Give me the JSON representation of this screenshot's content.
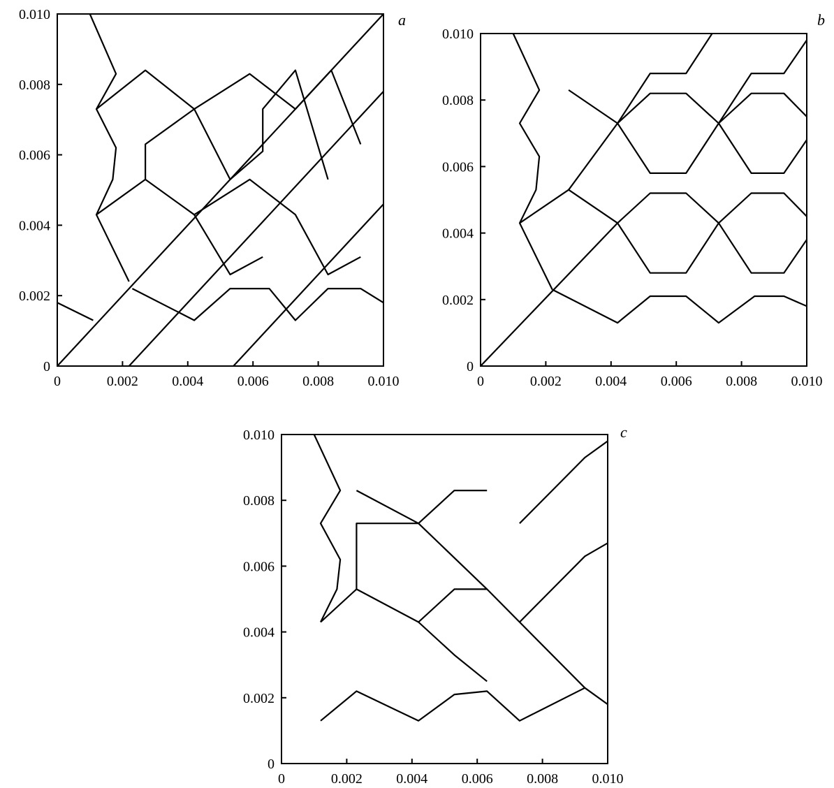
{
  "chart_data": [
    {
      "type": "line",
      "panel_label": "a",
      "xlim": [
        0,
        0.01
      ],
      "ylim": [
        0,
        0.01
      ],
      "x_ticks": [
        "0",
        "0.002",
        "0.004",
        "0.006",
        "0.008",
        "0.010"
      ],
      "y_ticks": [
        "0",
        "0.002",
        "0.004",
        "0.006",
        "0.008",
        "0.010"
      ],
      "grid": false,
      "series": [
        {
          "values": [
            [
              0,
              0
            ],
            [
              0.01,
              0.01
            ]
          ]
        },
        {
          "values": [
            [
              0.0022,
              0
            ],
            [
              0.01,
              0.0078
            ]
          ]
        },
        {
          "values": [
            [
              0.0054,
              0
            ],
            [
              0.01,
              0.0046
            ]
          ]
        },
        {
          "values": [
            [
              0.0023,
              0.0022
            ],
            [
              0.0042,
              0.0013
            ],
            [
              0.0053,
              0.0022
            ],
            [
              0.0065,
              0.0022
            ],
            [
              0.0073,
              0.0013
            ],
            [
              0.0083,
              0.0022
            ],
            [
              0.0093,
              0.0022
            ],
            [
              0.01,
              0.0018
            ]
          ]
        },
        {
          "values": [
            [
              0.0012,
              0.0043
            ],
            [
              0.0027,
              0.0053
            ],
            [
              0.0042,
              0.0043
            ],
            [
              0.0053,
              0.0026
            ],
            [
              0.0063,
              0.0031
            ]
          ]
        },
        {
          "values": [
            [
              0.0042,
              0.0043
            ],
            [
              0.0059,
              0.0053
            ],
            [
              0.0073,
              0.0043
            ],
            [
              0.0083,
              0.0026
            ],
            [
              0.0093,
              0.0031
            ]
          ]
        },
        {
          "values": [
            [
              0.0012,
              0.0073
            ],
            [
              0.0027,
              0.0084
            ],
            [
              0.0042,
              0.0073
            ],
            [
              0.0053,
              0.0053
            ],
            [
              0.0063,
              0.0061
            ],
            [
              0.0063,
              0.0073
            ],
            [
              0.0073,
              0.0084
            ],
            [
              0.0083,
              0.0053
            ]
          ]
        },
        {
          "values": [
            [
              0.0027,
              0.0053
            ],
            [
              0.0027,
              0.0063
            ],
            [
              0.0042,
              0.0073
            ],
            [
              0.0059,
              0.0083
            ],
            [
              0.0073,
              0.0073
            ],
            [
              0.0084,
              0.0084
            ],
            [
              0.0093,
              0.0063
            ]
          ]
        },
        {
          "values": [
            [
              0.0,
              0.0018
            ],
            [
              0.0011,
              0.0013
            ]
          ]
        },
        {
          "values": [
            [
              0.001,
              0.01
            ],
            [
              0.0018,
              0.0083
            ],
            [
              0.0012,
              0.0073
            ],
            [
              0.0018,
              0.0062
            ],
            [
              0.0017,
              0.0053
            ],
            [
              0.0012,
              0.0043
            ],
            [
              0.0022,
              0.0024
            ]
          ]
        }
      ]
    },
    {
      "type": "line",
      "panel_label": "b",
      "xlim": [
        0,
        0.01
      ],
      "ylim": [
        0,
        0.01
      ],
      "x_ticks": [
        "0",
        "0.002",
        "0.004",
        "0.006",
        "0.008",
        "0.010"
      ],
      "y_ticks": [
        "0",
        "0.002",
        "0.004",
        "0.006",
        "0.008",
        "0.010"
      ],
      "grid": false,
      "series": [
        {
          "values": [
            [
              0,
              0
            ],
            [
              0.0042,
              0.0043
            ]
          ]
        },
        {
          "values": [
            [
              0.0022,
              0.0023
            ],
            [
              0.0042,
              0.0013
            ],
            [
              0.0052,
              0.0021
            ],
            [
              0.0063,
              0.0021
            ],
            [
              0.0073,
              0.0013
            ],
            [
              0.0084,
              0.0021
            ],
            [
              0.0093,
              0.0021
            ],
            [
              0.01,
              0.0018
            ]
          ]
        },
        {
          "values": [
            [
              0.0012,
              0.0043
            ],
            [
              0.0027,
              0.0053
            ],
            [
              0.0042,
              0.0043
            ],
            [
              0.0052,
              0.0028
            ],
            [
              0.0063,
              0.0028
            ],
            [
              0.0073,
              0.0043
            ],
            [
              0.0083,
              0.0028
            ],
            [
              0.0093,
              0.0028
            ],
            [
              0.01,
              0.0038
            ]
          ]
        },
        {
          "values": [
            [
              0.0042,
              0.0043
            ],
            [
              0.0052,
              0.0052
            ],
            [
              0.0063,
              0.0052
            ],
            [
              0.0073,
              0.0043
            ],
            [
              0.0083,
              0.0052
            ],
            [
              0.0093,
              0.0052
            ],
            [
              0.01,
              0.0045
            ]
          ]
        },
        {
          "values": [
            [
              0.0027,
              0.0053
            ],
            [
              0.0042,
              0.0073
            ],
            [
              0.0052,
              0.0058
            ],
            [
              0.0063,
              0.0058
            ],
            [
              0.0073,
              0.0073
            ],
            [
              0.0083,
              0.0058
            ],
            [
              0.0093,
              0.0058
            ],
            [
              0.01,
              0.0068
            ]
          ]
        },
        {
          "values": [
            [
              0.0027,
              0.0083
            ],
            [
              0.0042,
              0.0073
            ],
            [
              0.0052,
              0.0082
            ],
            [
              0.0063,
              0.0082
            ],
            [
              0.0073,
              0.0073
            ],
            [
              0.0083,
              0.0082
            ],
            [
              0.0093,
              0.0082
            ],
            [
              0.01,
              0.0075
            ]
          ]
        },
        {
          "values": [
            [
              0.0042,
              0.0073
            ],
            [
              0.0052,
              0.0088
            ],
            [
              0.0063,
              0.0088
            ],
            [
              0.0073,
              0.0103
            ]
          ]
        },
        {
          "values": [
            [
              0.0073,
              0.0073
            ],
            [
              0.0083,
              0.0088
            ],
            [
              0.0093,
              0.0088
            ],
            [
              0.01,
              0.0098
            ]
          ]
        },
        {
          "values": [
            [
              0.001,
              0.01
            ],
            [
              0.0018,
              0.0083
            ],
            [
              0.0012,
              0.0073
            ],
            [
              0.0018,
              0.0063
            ],
            [
              0.0017,
              0.0053
            ],
            [
              0.0012,
              0.0043
            ],
            [
              0.0022,
              0.0023
            ]
          ]
        }
      ]
    },
    {
      "type": "line",
      "panel_label": "c",
      "xlim": [
        0,
        0.01
      ],
      "ylim": [
        0,
        0.01
      ],
      "x_ticks": [
        "0",
        "0.002",
        "0.004",
        "0.006",
        "0.008",
        "0.010"
      ],
      "y_ticks": [
        "0",
        "0.002",
        "0.004",
        "0.006",
        "0.008",
        "0.010"
      ],
      "grid": false,
      "series": [
        {
          "values": [
            [
              0.0012,
              0.0013
            ],
            [
              0.0023,
              0.0022
            ],
            [
              0.0042,
              0.0013
            ],
            [
              0.0053,
              0.0021
            ],
            [
              0.0063,
              0.0022
            ],
            [
              0.0073,
              0.0013
            ],
            [
              0.0093,
              0.0023
            ],
            [
              0.01,
              0.0018
            ]
          ]
        },
        {
          "values": [
            [
              0.0012,
              0.0043
            ],
            [
              0.0023,
              0.0053
            ],
            [
              0.0042,
              0.0043
            ],
            [
              0.0053,
              0.0033
            ],
            [
              0.0063,
              0.0025
            ]
          ]
        },
        {
          "values": [
            [
              0.0042,
              0.0043
            ],
            [
              0.0053,
              0.0053
            ],
            [
              0.0063,
              0.0053
            ],
            [
              0.0073,
              0.0043
            ],
            [
              0.0093,
              0.0023
            ]
          ]
        },
        {
          "values": [
            [
              0.0023,
              0.0053
            ],
            [
              0.0023,
              0.0073
            ],
            [
              0.0042,
              0.0073
            ],
            [
              0.0063,
              0.0053
            ]
          ]
        },
        {
          "values": [
            [
              0.0023,
              0.0083
            ],
            [
              0.0042,
              0.0073
            ],
            [
              0.0053,
              0.0083
            ],
            [
              0.0063,
              0.0083
            ]
          ]
        },
        {
          "values": [
            [
              0.0073,
              0.0043
            ],
            [
              0.0083,
              0.0053
            ],
            [
              0.0093,
              0.0063
            ],
            [
              0.01,
              0.0067
            ]
          ]
        },
        {
          "values": [
            [
              0.0073,
              0.0073
            ],
            [
              0.0083,
              0.0083
            ],
            [
              0.0093,
              0.0093
            ],
            [
              0.01,
              0.0098
            ]
          ]
        },
        {
          "values": [
            [
              0.001,
              0.01
            ],
            [
              0.0018,
              0.0083
            ],
            [
              0.0012,
              0.0073
            ],
            [
              0.0018,
              0.0062
            ],
            [
              0.0017,
              0.0053
            ],
            [
              0.0012,
              0.0043
            ]
          ]
        }
      ]
    }
  ]
}
